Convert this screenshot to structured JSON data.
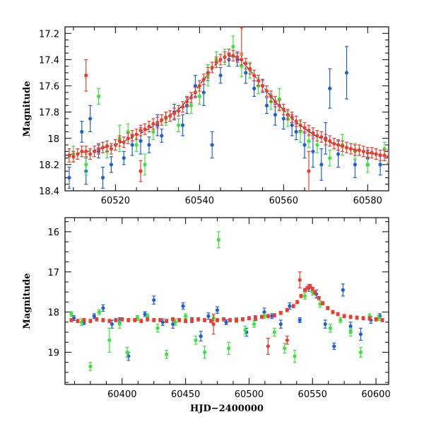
{
  "colors": {
    "blue": "#1f5fd6",
    "green": "#3ae53a",
    "red": "#ee3b2b",
    "model": "#000000"
  },
  "chart_data": [
    {
      "type": "scatter",
      "id": "top",
      "title": "",
      "xlabel": "",
      "ylabel": "Magnitude",
      "xlim": [
        60508,
        60585
      ],
      "ylim": [
        18.4,
        17.15
      ],
      "inverted_y": true,
      "xticks": [
        60520,
        60540,
        60560,
        60580
      ],
      "yticks": [
        17.2,
        17.4,
        17.6,
        17.8,
        18,
        18.2,
        18.4
      ],
      "ytick_labels": [
        "17.2",
        "17.4",
        "17.6",
        "17.8",
        "18",
        "18.2",
        "18.4"
      ],
      "grid": false,
      "model_curve": {
        "color": "#000000",
        "x": [
          60508,
          60515,
          60520,
          60525,
          60530,
          60535,
          60538,
          60541,
          60544,
          60546,
          60548,
          60550,
          60552,
          60555,
          60558,
          60562,
          60566,
          60570,
          60575,
          60580,
          60585
        ],
        "y": [
          18.13,
          18.09,
          18.05,
          17.98,
          17.89,
          17.78,
          17.68,
          17.55,
          17.43,
          17.38,
          17.37,
          17.41,
          17.48,
          17.6,
          17.72,
          17.85,
          17.95,
          18.02,
          18.07,
          18.11,
          18.14
        ]
      },
      "series": [
        {
          "name": "blue",
          "color": "#1f5fd6",
          "x": [
            60509,
            60512,
            60513,
            60514,
            60516,
            60517,
            60519,
            60522,
            60524,
            60526,
            60528,
            60530,
            60531,
            60534,
            60536,
            60537,
            60539,
            60541,
            60542,
            60543,
            60545,
            60547,
            60549,
            60551,
            60553,
            60555,
            60556,
            60558,
            60560,
            60562,
            60563,
            60565,
            60567,
            60569,
            60570,
            60571,
            60573,
            60575,
            60577,
            60580,
            60583
          ],
          "y": [
            18.3,
            17.95,
            18.25,
            17.85,
            18.1,
            18.3,
            18.2,
            18.15,
            18.05,
            18.02,
            18.05,
            17.9,
            17.98,
            17.8,
            17.9,
            17.75,
            17.6,
            17.65,
            17.5,
            18.05,
            17.52,
            17.4,
            17.4,
            17.5,
            17.62,
            17.6,
            17.75,
            17.82,
            17.85,
            17.9,
            17.95,
            18.05,
            18.1,
            18.2,
            18.0,
            17.62,
            18.12,
            17.5,
            18.2,
            18.15,
            18.2
          ],
          "err": [
            0.08,
            0.08,
            0.1,
            0.1,
            0.05,
            0.08,
            0.06,
            0.05,
            0.08,
            0.1,
            0.06,
            0.08,
            0.05,
            0.06,
            0.08,
            0.06,
            0.08,
            0.1,
            0.06,
            0.1,
            0.06,
            0.05,
            0.05,
            0.08,
            0.06,
            0.05,
            0.06,
            0.08,
            0.08,
            0.08,
            0.06,
            0.1,
            0.12,
            0.12,
            0.12,
            0.15,
            0.1,
            0.2,
            0.1,
            0.06,
            0.08
          ]
        },
        {
          "name": "green",
          "color": "#3ae53a",
          "x": [
            60510,
            60513,
            60516,
            60518,
            60521,
            60523,
            60525,
            60527,
            60529,
            60532,
            60535,
            60538,
            60540,
            60542,
            60544,
            60546,
            60548,
            60550,
            60552,
            60554,
            60557,
            60559,
            60561,
            60564,
            60566,
            60568,
            60571,
            60574,
            60577,
            60580,
            60584
          ],
          "y": [
            18.12,
            18.2,
            17.68,
            18.1,
            18.0,
            17.95,
            18.05,
            18.2,
            17.95,
            17.85,
            17.9,
            17.75,
            17.68,
            17.52,
            17.4,
            17.38,
            17.3,
            17.45,
            17.48,
            17.6,
            17.72,
            17.7,
            17.85,
            17.95,
            18.02,
            18.05,
            18.15,
            18.05,
            18.1,
            18.2,
            18.08
          ],
          "err": [
            0.06,
            0.08,
            0.06,
            0.05,
            0.1,
            0.06,
            0.05,
            0.08,
            0.06,
            0.05,
            0.05,
            0.06,
            0.06,
            0.08,
            0.06,
            0.06,
            0.08,
            0.08,
            0.06,
            0.06,
            0.06,
            0.08,
            0.06,
            0.08,
            0.05,
            0.06,
            0.06,
            0.08,
            0.06,
            0.06,
            0.05
          ]
        },
        {
          "name": "red",
          "color": "#ee3b2b",
          "x": [
            60509,
            60510,
            60511,
            60512,
            60513,
            60514,
            60515,
            60516,
            60517,
            60518,
            60519,
            60520,
            60521,
            60522,
            60523,
            60524,
            60525,
            60526,
            60527,
            60528,
            60529,
            60530,
            60531,
            60532,
            60533,
            60534,
            60535,
            60536,
            60537,
            60538,
            60539,
            60540,
            60541,
            60542,
            60543,
            60544,
            60545,
            60546,
            60547,
            60548,
            60549,
            60550,
            60551,
            60552,
            60553,
            60554,
            60555,
            60556,
            60557,
            60558,
            60559,
            60560,
            60561,
            60562,
            60563,
            60564,
            60565,
            60566,
            60567,
            60568,
            60569,
            60570,
            60571,
            60572,
            60573,
            60574,
            60575,
            60576,
            60577,
            60578,
            60579,
            60580,
            60581,
            60582,
            60583,
            60584,
            60585,
            60513,
            60526,
            60550,
            60566
          ],
          "y": [
            18.13,
            18.14,
            18.12,
            18.1,
            18.1,
            18.12,
            18.1,
            18.08,
            18.07,
            18.06,
            18.08,
            18.05,
            18.02,
            18.03,
            18.0,
            17.98,
            17.97,
            17.94,
            17.93,
            17.91,
            17.89,
            17.88,
            17.86,
            17.84,
            17.83,
            17.81,
            17.79,
            17.76,
            17.72,
            17.69,
            17.65,
            17.6,
            17.55,
            17.5,
            17.46,
            17.42,
            17.4,
            17.38,
            17.36,
            17.37,
            17.38,
            17.4,
            17.43,
            17.47,
            17.52,
            17.56,
            17.6,
            17.64,
            17.68,
            17.72,
            17.75,
            17.78,
            17.82,
            17.84,
            17.87,
            17.9,
            17.92,
            17.94,
            17.96,
            17.98,
            17.99,
            18.01,
            18.02,
            18.04,
            18.05,
            18.06,
            18.07,
            18.08,
            18.09,
            18.09,
            18.1,
            18.11,
            18.11,
            18.12,
            18.13,
            18.13,
            18.14,
            17.52,
            18.25,
            17.15,
            18.25
          ],
          "err": [
            0.05,
            0.04,
            0.04,
            0.04,
            0.04,
            0.04,
            0.04,
            0.04,
            0.04,
            0.04,
            0.04,
            0.04,
            0.04,
            0.04,
            0.04,
            0.04,
            0.04,
            0.04,
            0.04,
            0.04,
            0.04,
            0.04,
            0.04,
            0.04,
            0.04,
            0.04,
            0.04,
            0.04,
            0.04,
            0.04,
            0.04,
            0.04,
            0.04,
            0.04,
            0.04,
            0.04,
            0.04,
            0.04,
            0.04,
            0.04,
            0.04,
            0.04,
            0.04,
            0.04,
            0.04,
            0.04,
            0.04,
            0.04,
            0.04,
            0.04,
            0.04,
            0.04,
            0.04,
            0.04,
            0.04,
            0.04,
            0.04,
            0.04,
            0.04,
            0.04,
            0.04,
            0.04,
            0.04,
            0.04,
            0.04,
            0.04,
            0.04,
            0.04,
            0.04,
            0.04,
            0.04,
            0.04,
            0.04,
            0.04,
            0.04,
            0.04,
            0.05,
            0.12,
            0.08,
            0.2,
            0.15
          ]
        }
      ]
    },
    {
      "type": "scatter",
      "id": "bottom",
      "title": "",
      "xlabel": "HJD−2400000",
      "ylabel": "Magnitude",
      "xlim": [
        60355,
        60610
      ],
      "ylim": [
        19.8,
        15.65
      ],
      "inverted_y": true,
      "xticks": [
        60400,
        60450,
        60500,
        60550,
        60600
      ],
      "yticks": [
        16,
        17,
        18,
        19
      ],
      "ytick_labels": [
        "16",
        "17",
        "18",
        "19"
      ],
      "grid": false,
      "series": [
        {
          "name": "blue",
          "color": "#1f5fd6",
          "x": [
            60362,
            60370,
            60378,
            60385,
            60392,
            60398,
            60405,
            60412,
            60418,
            60425,
            60432,
            60440,
            60448,
            60455,
            60462,
            60468,
            60475,
            60482,
            60490,
            60498,
            60505,
            60512,
            60518,
            60525,
            60532,
            60540,
            60547,
            60553,
            60560,
            60567,
            60574,
            60580,
            60588,
            60596,
            60603
          ],
          "y": [
            18.15,
            18.25,
            18.1,
            17.9,
            18.3,
            18.2,
            19.1,
            18.15,
            18.05,
            17.7,
            18.25,
            18.3,
            17.85,
            18.2,
            18.6,
            18.1,
            17.95,
            18.25,
            18.2,
            18.5,
            18.15,
            18.0,
            18.1,
            18.3,
            17.85,
            18.2,
            17.4,
            17.55,
            18.3,
            18.85,
            17.45,
            18.35,
            18.55,
            18.2,
            18.1
          ],
          "err": [
            0.06,
            0.06,
            0.06,
            0.08,
            0.1,
            0.06,
            0.1,
            0.06,
            0.06,
            0.1,
            0.08,
            0.1,
            0.08,
            0.06,
            0.12,
            0.08,
            0.08,
            0.06,
            0.06,
            0.1,
            0.06,
            0.1,
            0.06,
            0.1,
            0.08,
            0.06,
            0.08,
            0.1,
            0.1,
            0.08,
            0.15,
            0.1,
            0.15,
            0.08,
            0.06
          ]
        },
        {
          "name": "green",
          "color": "#3ae53a",
          "x": [
            60360,
            60368,
            60375,
            60382,
            60390,
            60398,
            60404,
            60412,
            60420,
            60428,
            60435,
            60442,
            60450,
            60458,
            60465,
            60472,
            60476,
            60484,
            60490,
            60497,
            60504,
            60512,
            60520,
            60528,
            60536,
            60544,
            60550,
            60556,
            60564,
            60572,
            60580,
            60588,
            60595,
            60602
          ],
          "y": [
            18.05,
            18.25,
            19.35,
            18.0,
            18.7,
            18.3,
            19.0,
            18.15,
            18.1,
            18.4,
            19.05,
            18.25,
            18.1,
            18.7,
            19.0,
            18.15,
            16.2,
            18.9,
            18.2,
            18.45,
            18.3,
            18.1,
            18.5,
            18.9,
            19.1,
            17.6,
            17.5,
            17.8,
            18.4,
            18.2,
            18.5,
            19.0,
            18.1,
            18.15
          ],
          "err": [
            0.06,
            0.08,
            0.1,
            0.06,
            0.3,
            0.1,
            0.12,
            0.06,
            0.06,
            0.1,
            0.1,
            0.08,
            0.06,
            0.1,
            0.15,
            0.06,
            0.2,
            0.15,
            0.06,
            0.1,
            0.08,
            0.06,
            0.1,
            0.12,
            0.15,
            0.08,
            0.08,
            0.08,
            0.1,
            0.06,
            0.1,
            0.12,
            0.06,
            0.06
          ]
        },
        {
          "name": "red",
          "color": "#ee3b2b",
          "x": [
            60360,
            60365,
            60370,
            60375,
            60380,
            60385,
            60390,
            60395,
            60400,
            60405,
            60410,
            60415,
            60420,
            60425,
            60430,
            60435,
            60440,
            60445,
            60450,
            60455,
            60460,
            60465,
            60470,
            60475,
            60480,
            60485,
            60490,
            60495,
            60500,
            60505,
            60510,
            60515,
            60520,
            60525,
            60530,
            60535,
            60538,
            60541,
            60544,
            60546,
            60548,
            60550,
            60552,
            60555,
            60558,
            60562,
            60566,
            60570,
            60575,
            60580,
            60585,
            60590,
            60595,
            60600,
            60605,
            60472,
            60515,
            60530,
            60540
          ],
          "y": [
            18.2,
            18.22,
            18.2,
            18.22,
            18.18,
            18.2,
            18.22,
            18.2,
            18.18,
            18.2,
            18.2,
            18.22,
            18.18,
            18.2,
            18.2,
            18.22,
            18.18,
            18.2,
            18.22,
            18.2,
            18.18,
            18.2,
            18.22,
            18.2,
            18.18,
            18.2,
            18.2,
            18.18,
            18.15,
            18.15,
            18.12,
            18.1,
            18.08,
            18.02,
            17.95,
            17.85,
            17.75,
            17.6,
            17.45,
            17.4,
            17.35,
            17.42,
            17.52,
            17.65,
            17.78,
            17.9,
            18.0,
            18.05,
            18.1,
            18.12,
            18.14,
            18.15,
            18.16,
            18.18,
            18.2,
            18.3,
            18.85,
            18.7,
            17.2
          ],
          "err": [
            0.04,
            0.04,
            0.04,
            0.04,
            0.04,
            0.04,
            0.04,
            0.04,
            0.04,
            0.04,
            0.04,
            0.04,
            0.04,
            0.04,
            0.04,
            0.04,
            0.04,
            0.04,
            0.04,
            0.04,
            0.04,
            0.04,
            0.04,
            0.04,
            0.04,
            0.04,
            0.04,
            0.04,
            0.04,
            0.04,
            0.04,
            0.04,
            0.04,
            0.04,
            0.04,
            0.04,
            0.04,
            0.04,
            0.04,
            0.04,
            0.04,
            0.04,
            0.04,
            0.04,
            0.04,
            0.04,
            0.04,
            0.04,
            0.04,
            0.04,
            0.04,
            0.04,
            0.04,
            0.04,
            0.04,
            0.25,
            0.2,
            0.1,
            0.2
          ]
        }
      ]
    }
  ]
}
